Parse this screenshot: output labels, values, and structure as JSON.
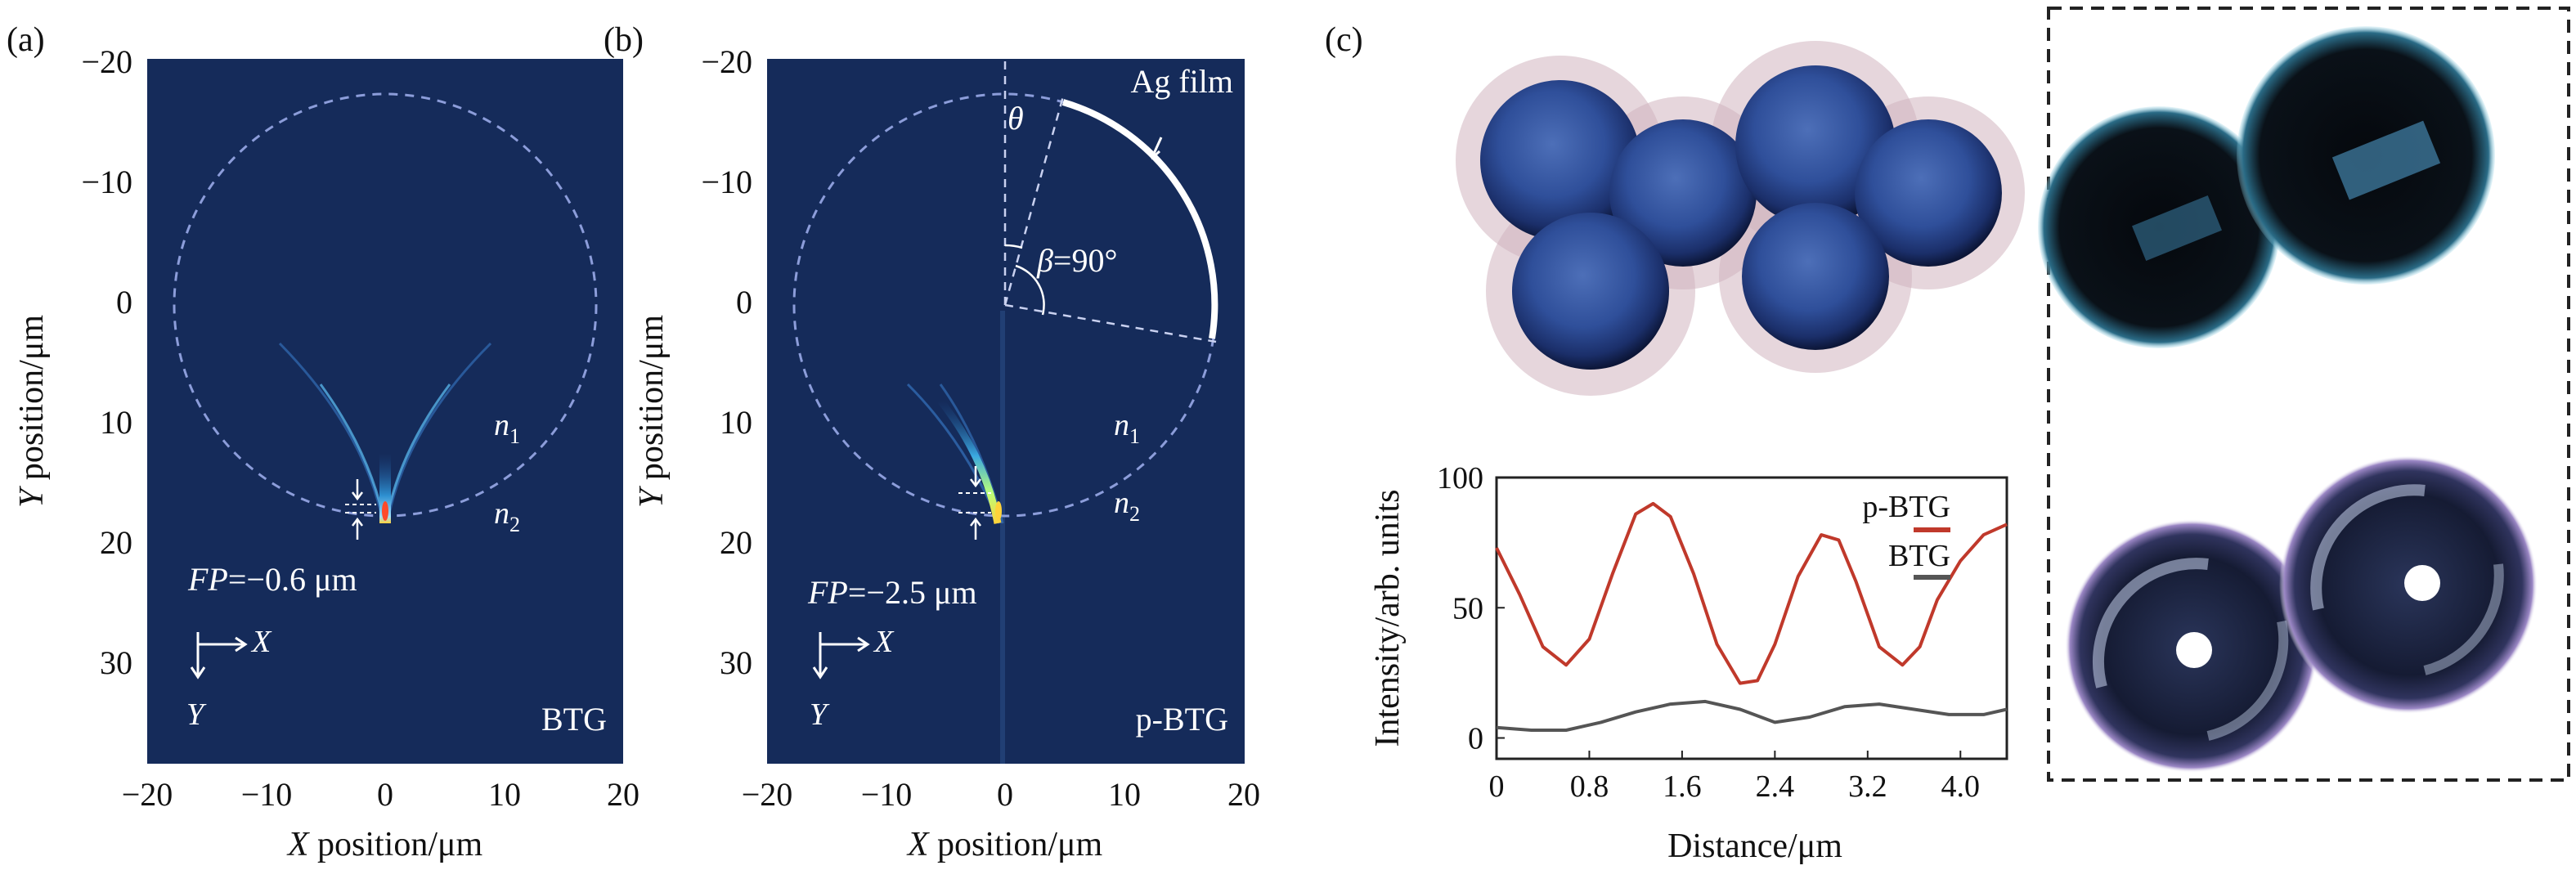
{
  "panel_a": {
    "label": "(a)",
    "xlabel_var": "X",
    "xlabel_rest": " position/μm",
    "ylabel_var": "Y",
    "ylabel_rest": " position/μm",
    "xticks": [
      "−20",
      "−10",
      "0",
      "10",
      "20"
    ],
    "yticks": [
      "−20",
      "−10",
      "0",
      "10",
      "20",
      "30"
    ],
    "n1": "n",
    "n1_sub": "1",
    "n2": "n",
    "n2_sub": "2",
    "fp_var": "FP",
    "fp_value": "=−0.6 μm",
    "axis_x": "X",
    "axis_y": "Y",
    "name": "BTG"
  },
  "panel_b": {
    "label": "(b)",
    "xlabel_var": "X",
    "xlabel_rest": " position/μm",
    "ylabel_var": "Y",
    "ylabel_rest": " position/μm",
    "xticks": [
      "−20",
      "−10",
      "0",
      "10",
      "20"
    ],
    "yticks": [
      "−20",
      "−10",
      "0",
      "10",
      "20",
      "30"
    ],
    "film": "Ag film",
    "theta": "θ",
    "beta_var": "β",
    "beta_value": "=90°",
    "n1": "n",
    "n1_sub": "1",
    "n2": "n",
    "n2_sub": "2",
    "fp_var": "FP",
    "fp_value": "=−2.5 μm",
    "axis_x": "X",
    "axis_y": "Y",
    "name": "p-BTG"
  },
  "panel_c": {
    "label": "(c)"
  },
  "chart_data": {
    "type": "line",
    "xlabel": "Distance/μm",
    "ylabel": "Intensity/arb. units",
    "xticks": [
      "0",
      "0.8",
      "1.6",
      "2.4",
      "3.2",
      "4.0"
    ],
    "yticks": [
      "0",
      "50",
      "100"
    ],
    "xlim": [
      0,
      4.4
    ],
    "ylim": [
      -8,
      100
    ],
    "series": [
      {
        "name": "p-BTG",
        "color": "#c0392b",
        "x": [
          0,
          0.2,
          0.4,
          0.6,
          0.8,
          1.0,
          1.2,
          1.35,
          1.5,
          1.7,
          1.9,
          2.1,
          2.25,
          2.4,
          2.6,
          2.8,
          2.95,
          3.1,
          3.3,
          3.5,
          3.65,
          3.8,
          4.0,
          4.2,
          4.4
        ],
        "y": [
          73,
          55,
          35,
          28,
          38,
          63,
          86,
          90,
          85,
          63,
          36,
          21,
          22,
          36,
          62,
          78,
          76,
          60,
          35,
          28,
          35,
          53,
          68,
          78,
          82
        ]
      },
      {
        "name": "BTG",
        "color": "#555555",
        "x": [
          0,
          0.3,
          0.6,
          0.9,
          1.2,
          1.5,
          1.8,
          2.1,
          2.4,
          2.7,
          3.0,
          3.3,
          3.6,
          3.9,
          4.2,
          4.4
        ],
        "y": [
          4,
          3,
          3,
          6,
          10,
          13,
          14,
          11,
          6,
          8,
          12,
          13,
          11,
          9,
          9,
          11
        ]
      }
    ]
  }
}
